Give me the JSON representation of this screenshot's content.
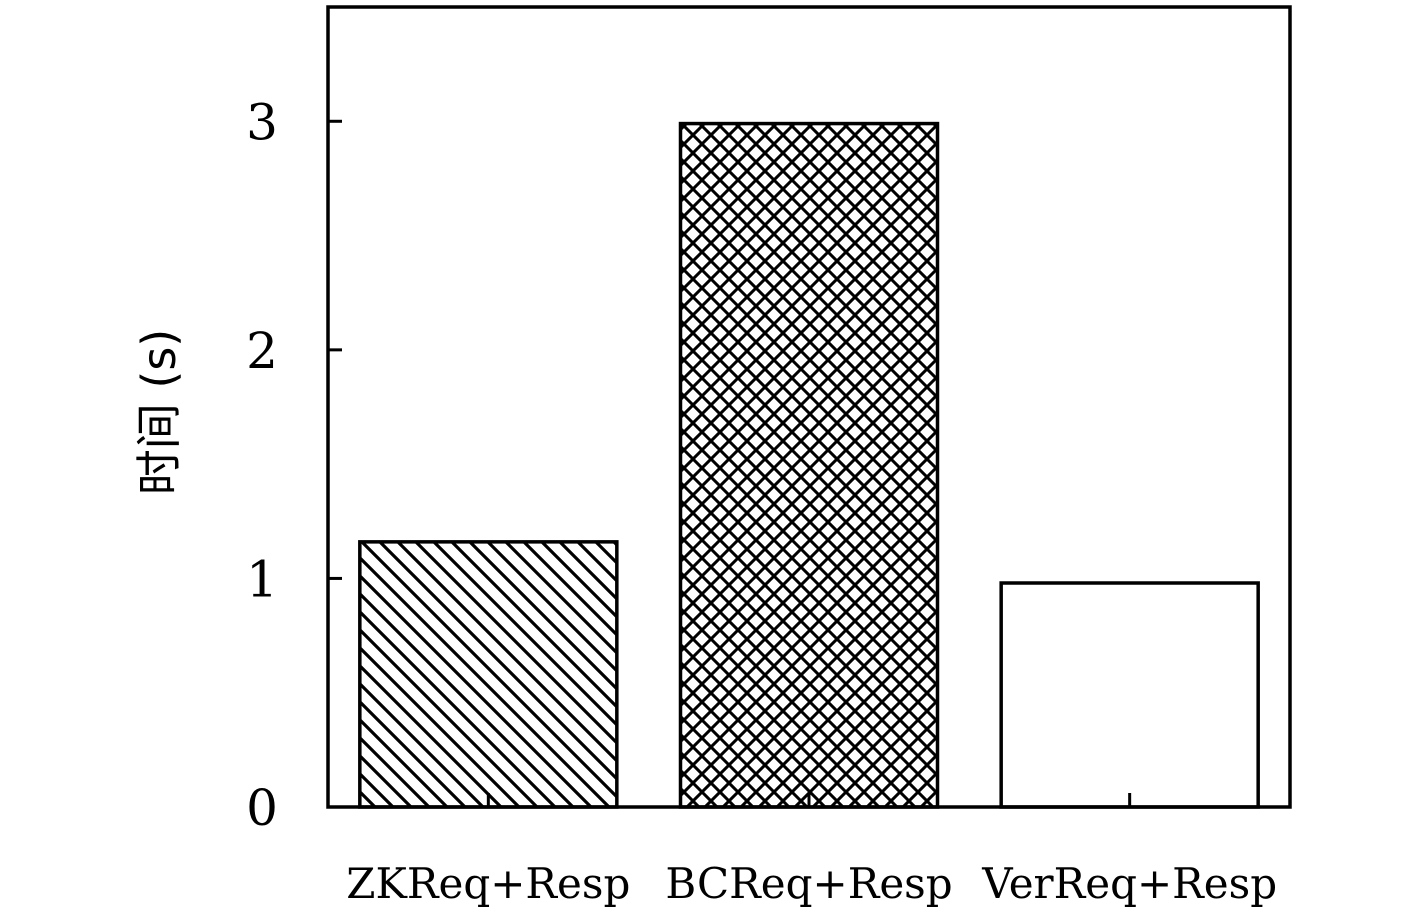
{
  "chart_data": {
    "type": "bar",
    "title": "",
    "xlabel": "",
    "ylabel": "时间 (s)",
    "categories": [
      "ZKReq+Resp",
      "BCReq+Resp",
      "VerReq+Resp"
    ],
    "values": [
      1.16,
      2.99,
      0.98
    ],
    "bar_patterns": [
      "diagonal-hatch",
      "cross-hatch",
      "none"
    ],
    "ylim": [
      0,
      3.5
    ],
    "yticks": [
      0,
      1,
      2,
      3
    ],
    "grid": false,
    "legend": "none",
    "colors": {
      "stroke": "#000000",
      "fill": "#ffffff"
    }
  }
}
